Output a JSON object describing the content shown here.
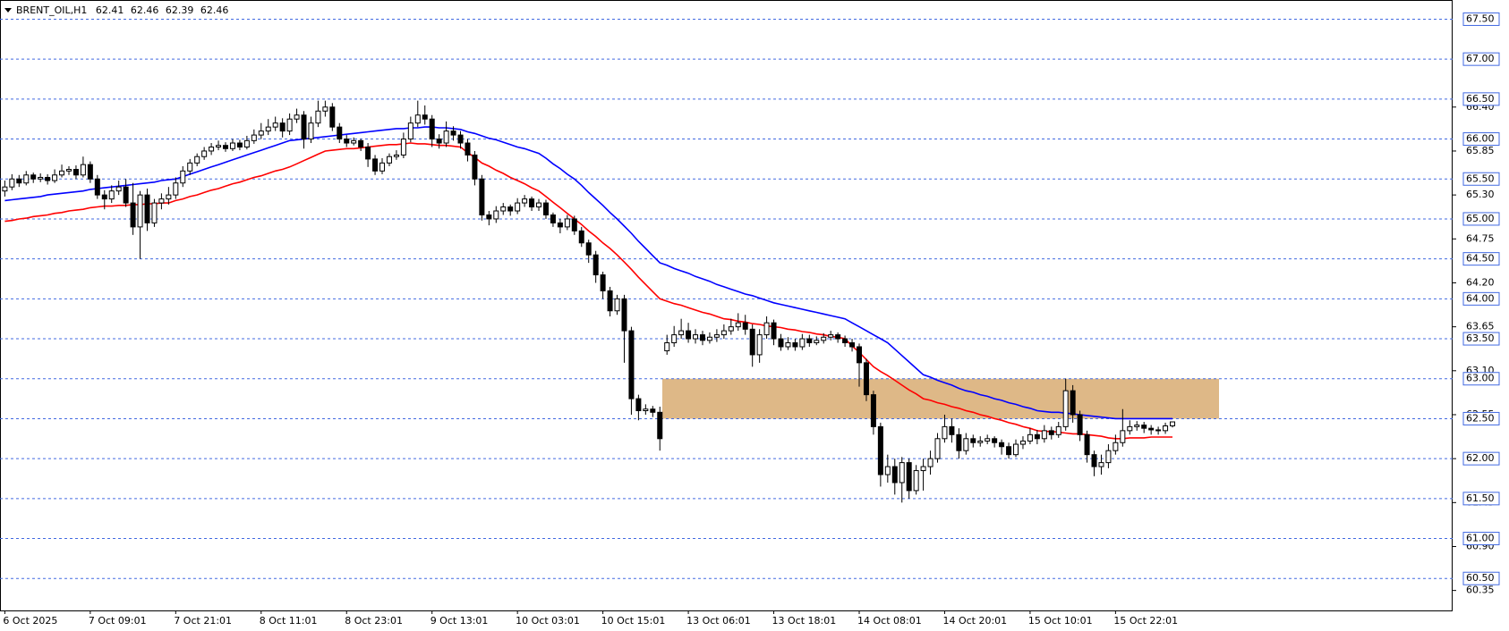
{
  "chart_data": {
    "type": "candlestick",
    "title": "BRENT_OIL,H1",
    "categories": [
      "6 Oct 2025",
      null,
      null,
      null,
      null,
      null,
      null,
      null,
      null,
      null,
      null,
      null,
      "7 Oct 09:01",
      null,
      null,
      null,
      null,
      null,
      null,
      null,
      null,
      null,
      null,
      null,
      "7 Oct 21:01",
      null,
      null,
      null,
      null,
      null,
      null,
      null,
      null,
      null,
      null,
      null,
      "8 Oct 11:01",
      null,
      null,
      null,
      null,
      null,
      null,
      null,
      null,
      null,
      null,
      null,
      "8 Oct 23:01",
      null,
      null,
      null,
      null,
      null,
      null,
      null,
      null,
      null,
      null,
      null,
      "9 Oct 13:01",
      null,
      null,
      null,
      null,
      null,
      null,
      null,
      null,
      null,
      null,
      null,
      "10 Oct 03:01",
      null,
      null,
      null,
      null,
      null,
      null,
      null,
      null,
      null,
      null,
      null,
      "10 Oct 15:01",
      null,
      null,
      null,
      null,
      null,
      null,
      null,
      null,
      null,
      null,
      null,
      "13 Oct 06:01",
      null,
      null,
      null,
      null,
      null,
      null,
      null,
      null,
      null,
      null,
      null,
      "13 Oct 18:01",
      null,
      null,
      null,
      null,
      null,
      null,
      null,
      null,
      null,
      null,
      null,
      "14 Oct 08:01",
      null,
      null,
      null,
      null,
      null,
      null,
      null,
      null,
      null,
      null,
      null,
      "14 Oct 20:01",
      null,
      null,
      null,
      null,
      null,
      null,
      null,
      null,
      null,
      null,
      null,
      "15 Oct 10:01",
      null,
      null,
      null,
      null,
      null,
      null,
      null,
      null,
      null,
      null,
      null,
      "15 Oct 22:01",
      null,
      null,
      null,
      null,
      null,
      null,
      null,
      null
    ],
    "open": [
      65.35,
      65.4,
      65.5,
      65.45,
      65.55,
      65.5,
      65.52,
      65.48,
      65.55,
      65.6,
      65.62,
      65.55,
      65.68,
      65.5,
      65.3,
      65.25,
      65.35,
      65.4,
      65.2,
      64.9,
      65.3,
      64.95,
      65.2,
      65.25,
      65.3,
      65.45,
      65.6,
      65.7,
      65.78,
      65.85,
      65.9,
      65.92,
      65.88,
      65.95,
      65.9,
      65.98,
      66.05,
      66.1,
      66.15,
      66.2,
      66.1,
      66.25,
      66.3,
      66.0,
      66.2,
      66.35,
      66.4,
      66.15,
      66.0,
      65.95,
      65.98,
      65.9,
      65.75,
      65.6,
      65.7,
      65.78,
      65.8,
      66.0,
      66.2,
      66.3,
      66.25,
      66.0,
      65.95,
      66.1,
      66.05,
      65.95,
      65.8,
      65.5,
      65.05,
      65.0,
      65.1,
      65.15,
      65.1,
      65.2,
      65.25,
      65.15,
      65.2,
      65.05,
      64.95,
      64.9,
      65.0,
      64.85,
      64.7,
      64.55,
      64.3,
      64.1,
      63.85,
      64.0,
      63.6,
      62.75,
      62.6,
      62.62,
      62.58,
      63.35,
      63.45,
      63.55,
      63.6,
      63.5,
      63.55,
      63.48,
      63.52,
      63.55,
      63.6,
      63.65,
      63.7,
      63.62,
      63.3,
      63.55,
      63.7,
      63.5,
      63.4,
      63.45,
      63.4,
      63.5,
      63.45,
      63.48,
      63.52,
      63.55,
      63.5,
      63.45,
      63.4,
      63.2,
      62.8,
      62.4,
      61.8,
      61.9,
      61.7,
      61.95,
      61.6,
      61.85,
      61.9,
      62.0,
      62.25,
      62.4,
      62.3,
      62.1,
      62.25,
      62.2,
      62.22,
      62.25,
      62.2,
      62.15,
      62.05,
      62.18,
      62.22,
      62.3,
      62.25,
      62.35,
      62.3,
      62.4,
      62.85,
      62.55,
      62.3,
      62.05,
      61.9,
      61.95,
      62.1,
      62.2,
      62.35,
      62.4,
      62.42,
      62.38,
      62.36,
      62.35,
      62.41
    ],
    "high": [
      65.48,
      65.56,
      65.55,
      65.6,
      65.58,
      65.57,
      65.56,
      65.62,
      65.68,
      65.66,
      65.67,
      65.78,
      65.72,
      65.55,
      65.36,
      65.42,
      65.48,
      65.5,
      65.45,
      65.35,
      65.38,
      65.25,
      65.32,
      65.4,
      65.52,
      65.66,
      65.75,
      65.82,
      65.9,
      65.95,
      65.98,
      65.96,
      66.0,
      65.99,
      66.04,
      66.12,
      66.2,
      66.25,
      66.28,
      66.26,
      66.32,
      66.38,
      66.35,
      66.28,
      66.48,
      66.48,
      66.45,
      66.2,
      66.05,
      66.02,
      66.0,
      65.95,
      65.8,
      65.76,
      65.82,
      65.86,
      66.08,
      66.28,
      66.48,
      66.42,
      66.3,
      66.06,
      66.22,
      66.16,
      66.1,
      66.0,
      65.85,
      65.55,
      65.1,
      65.16,
      65.2,
      65.18,
      65.26,
      65.3,
      65.28,
      65.25,
      65.24,
      65.08,
      65.0,
      65.05,
      65.04,
      64.9,
      64.74,
      64.6,
      64.34,
      64.15,
      64.05,
      64.05,
      63.65,
      62.8,
      62.68,
      62.66,
      62.65,
      63.55,
      63.66,
      63.75,
      63.7,
      63.62,
      63.6,
      63.58,
      63.62,
      63.68,
      63.75,
      63.82,
      63.8,
      63.68,
      63.62,
      63.78,
      63.74,
      63.56,
      63.52,
      63.5,
      63.56,
      63.55,
      63.53,
      63.57,
      63.6,
      63.58,
      63.54,
      63.5,
      63.44,
      63.25,
      62.85,
      62.45,
      62.05,
      62.0,
      62.02,
      62.0,
      61.92,
      62.0,
      62.1,
      62.32,
      62.55,
      62.5,
      62.38,
      62.32,
      62.3,
      62.28,
      62.3,
      62.28,
      62.24,
      62.2,
      62.24,
      62.28,
      62.38,
      62.36,
      62.42,
      62.4,
      62.46,
      63.0,
      62.92,
      62.6,
      62.35,
      62.1,
      62.05,
      62.18,
      62.3,
      62.62,
      62.48,
      62.47,
      62.46,
      62.42,
      62.4,
      62.45,
      62.46
    ],
    "low": [
      65.28,
      65.36,
      65.4,
      65.42,
      65.45,
      65.46,
      65.43,
      65.45,
      65.52,
      65.55,
      65.5,
      65.52,
      65.45,
      65.25,
      65.12,
      65.2,
      65.3,
      65.15,
      64.8,
      64.5,
      64.85,
      64.9,
      65.12,
      65.18,
      65.25,
      65.4,
      65.55,
      65.66,
      65.74,
      65.8,
      65.86,
      65.84,
      65.85,
      65.86,
      65.87,
      65.94,
      66.0,
      66.05,
      66.1,
      66.02,
      66.05,
      66.2,
      65.88,
      65.95,
      66.15,
      66.28,
      66.1,
      65.95,
      65.9,
      65.92,
      65.85,
      65.65,
      65.55,
      65.56,
      65.66,
      65.74,
      65.76,
      65.96,
      66.15,
      66.18,
      65.9,
      65.88,
      65.9,
      65.98,
      65.88,
      65.72,
      65.42,
      64.98,
      64.92,
      64.95,
      65.05,
      65.04,
      65.06,
      65.15,
      65.1,
      65.1,
      65.0,
      64.9,
      64.82,
      64.86,
      64.8,
      64.65,
      64.45,
      64.2,
      64.0,
      63.78,
      63.8,
      63.2,
      62.55,
      62.48,
      62.55,
      62.52,
      62.1,
      63.3,
      63.4,
      63.5,
      63.45,
      63.44,
      63.42,
      63.44,
      63.46,
      63.5,
      63.55,
      63.6,
      63.55,
      63.15,
      63.2,
      63.5,
      63.42,
      63.35,
      63.36,
      63.35,
      63.36,
      63.4,
      63.42,
      63.44,
      63.48,
      63.45,
      63.4,
      63.34,
      62.9,
      62.72,
      62.3,
      61.65,
      61.7,
      61.55,
      61.45,
      61.5,
      61.55,
      61.6,
      61.8,
      61.95,
      62.2,
      62.2,
      62.0,
      62.05,
      62.14,
      62.15,
      62.18,
      62.14,
      62.05,
      62.0,
      62.02,
      62.12,
      62.18,
      62.18,
      62.2,
      62.24,
      62.26,
      62.35,
      62.45,
      62.22,
      61.95,
      61.78,
      61.8,
      61.88,
      62.05,
      62.15,
      62.3,
      62.35,
      62.32,
      62.3,
      62.3,
      62.31,
      62.39
    ],
    "close": [
      65.4,
      65.5,
      65.45,
      65.55,
      65.5,
      65.52,
      65.48,
      65.55,
      65.6,
      65.62,
      65.55,
      65.68,
      65.5,
      65.3,
      65.25,
      65.35,
      65.4,
      65.2,
      64.9,
      65.3,
      64.95,
      65.2,
      65.25,
      65.3,
      65.45,
      65.6,
      65.7,
      65.78,
      65.85,
      65.9,
      65.92,
      65.88,
      65.95,
      65.9,
      65.98,
      66.05,
      66.1,
      66.15,
      66.2,
      66.1,
      66.25,
      66.3,
      66.0,
      66.2,
      66.35,
      66.4,
      66.15,
      66.0,
      65.95,
      65.98,
      65.9,
      65.75,
      65.6,
      65.7,
      65.78,
      65.8,
      66.0,
      66.2,
      66.3,
      66.25,
      66.0,
      65.95,
      66.1,
      66.05,
      65.95,
      65.8,
      65.5,
      65.05,
      65.0,
      65.1,
      65.15,
      65.1,
      65.2,
      65.25,
      65.15,
      65.2,
      65.05,
      64.95,
      64.9,
      65.0,
      64.85,
      64.7,
      64.55,
      64.3,
      64.1,
      63.85,
      64.0,
      63.6,
      62.75,
      62.6,
      62.62,
      62.58,
      62.25,
      63.45,
      63.55,
      63.6,
      63.5,
      63.55,
      63.48,
      63.52,
      63.55,
      63.6,
      63.65,
      63.7,
      63.62,
      63.3,
      63.55,
      63.7,
      63.5,
      63.4,
      63.45,
      63.4,
      63.5,
      63.45,
      63.48,
      63.52,
      63.55,
      63.5,
      63.45,
      63.4,
      63.2,
      62.8,
      62.4,
      61.8,
      61.9,
      61.7,
      61.95,
      61.6,
      61.85,
      61.9,
      62.0,
      62.25,
      62.4,
      62.3,
      62.1,
      62.25,
      62.2,
      62.22,
      62.25,
      62.2,
      62.15,
      62.05,
      62.18,
      62.22,
      62.3,
      62.25,
      62.35,
      62.3,
      62.4,
      62.85,
      62.55,
      62.3,
      62.05,
      61.9,
      61.95,
      62.1,
      62.2,
      62.35,
      62.4,
      62.42,
      62.38,
      62.36,
      62.35,
      62.41,
      62.46
    ],
    "lines": [
      {
        "color": "#0000ff",
        "values": [
          65.23,
          65.24,
          65.25,
          65.26,
          65.27,
          65.28,
          65.3,
          65.31,
          65.32,
          65.33,
          65.34,
          65.35,
          65.37,
          65.38,
          65.39,
          65.4,
          65.41,
          65.42,
          65.43,
          65.44,
          65.45,
          65.46,
          65.48,
          65.49,
          65.5,
          65.53,
          65.56,
          65.59,
          65.62,
          65.65,
          65.68,
          65.71,
          65.74,
          65.77,
          65.8,
          65.83,
          65.86,
          65.89,
          65.92,
          65.95,
          65.98,
          65.99,
          66.0,
          66.01,
          66.02,
          66.03,
          66.04,
          66.05,
          66.06,
          66.07,
          66.08,
          66.09,
          66.1,
          66.11,
          66.12,
          66.13,
          66.13,
          66.14,
          66.14,
          66.15,
          66.15,
          66.14,
          66.14,
          66.13,
          66.12,
          66.09,
          66.07,
          66.04,
          66.01,
          65.99,
          65.96,
          65.93,
          65.9,
          65.88,
          65.85,
          65.82,
          65.76,
          65.69,
          65.63,
          65.56,
          65.5,
          65.42,
          65.33,
          65.25,
          65.17,
          65.08,
          65.0,
          64.91,
          64.82,
          64.72,
          64.63,
          64.54,
          64.45,
          64.42,
          64.38,
          64.35,
          64.32,
          64.28,
          64.25,
          64.22,
          64.18,
          64.15,
          64.12,
          64.09,
          64.06,
          64.04,
          64.01,
          63.98,
          63.95,
          63.93,
          63.91,
          63.89,
          63.87,
          63.85,
          63.83,
          63.81,
          63.79,
          63.77,
          63.75,
          63.7,
          63.65,
          63.6,
          63.55,
          63.5,
          63.45,
          63.37,
          63.29,
          63.21,
          63.13,
          63.05,
          63.02,
          62.98,
          62.95,
          62.92,
          62.88,
          62.85,
          62.83,
          62.8,
          62.78,
          62.75,
          62.73,
          62.7,
          62.68,
          62.65,
          62.63,
          62.6,
          62.59,
          62.58,
          62.58,
          62.57,
          62.56,
          62.55,
          62.54,
          62.53,
          62.52,
          62.51,
          62.5,
          62.5,
          62.5,
          62.5,
          62.5,
          62.5,
          62.5,
          62.5,
          62.5
        ]
      },
      {
        "color": "#ff0000",
        "values": [
          64.97,
          64.98,
          65.0,
          65.01,
          65.03,
          65.04,
          65.05,
          65.07,
          65.08,
          65.1,
          65.11,
          65.12,
          65.14,
          65.15,
          65.16,
          65.16,
          65.17,
          65.17,
          65.18,
          65.18,
          65.19,
          65.19,
          65.2,
          65.2,
          65.23,
          65.25,
          65.28,
          65.3,
          65.33,
          65.36,
          65.38,
          65.41,
          65.44,
          65.46,
          65.49,
          65.52,
          65.54,
          65.57,
          65.6,
          65.62,
          65.65,
          65.69,
          65.73,
          65.77,
          65.81,
          65.85,
          65.86,
          65.87,
          65.88,
          65.88,
          65.89,
          65.9,
          65.91,
          65.92,
          65.93,
          65.93,
          65.94,
          65.95,
          65.94,
          65.94,
          65.93,
          65.92,
          65.92,
          65.91,
          65.9,
          65.83,
          65.77,
          65.7,
          65.66,
          65.61,
          65.57,
          65.52,
          65.48,
          65.44,
          65.39,
          65.35,
          65.28,
          65.21,
          65.14,
          65.07,
          65.0,
          64.93,
          64.85,
          64.78,
          64.7,
          64.63,
          64.55,
          64.46,
          64.37,
          64.27,
          64.18,
          64.09,
          64.0,
          63.97,
          63.94,
          63.92,
          63.89,
          63.86,
          63.83,
          63.81,
          63.78,
          63.75,
          63.74,
          63.72,
          63.71,
          63.69,
          63.68,
          63.66,
          63.65,
          63.64,
          63.62,
          63.61,
          63.59,
          63.58,
          63.56,
          63.55,
          63.53,
          63.52,
          63.5,
          63.41,
          63.33,
          63.24,
          63.15,
          63.09,
          63.04,
          62.98,
          62.92,
          62.86,
          62.81,
          62.75,
          62.73,
          62.7,
          62.68,
          62.65,
          62.63,
          62.6,
          62.58,
          62.55,
          62.53,
          62.5,
          62.48,
          62.45,
          62.43,
          62.4,
          62.38,
          62.35,
          62.34,
          62.34,
          62.33,
          62.32,
          62.31,
          62.31,
          62.3,
          62.29,
          62.28,
          62.26,
          62.25,
          62.25,
          62.26,
          62.26,
          62.26,
          62.27,
          62.27,
          62.27,
          62.27
        ]
      }
    ],
    "zone": {
      "range": [
        62.5,
        63.0
      ],
      "color": "#deb887"
    },
    "levels": [
      {
        "value": 67.5,
        "label": "67.50"
      },
      {
        "value": 67,
        "label": "67.00"
      },
      {
        "value": 66.5,
        "label": "66.50"
      },
      {
        "value": 66,
        "label": "66.00"
      },
      {
        "value": 65.5,
        "label": "65.50"
      },
      {
        "value": 65,
        "label": "65.00"
      },
      {
        "value": 64.5,
        "label": "64.50"
      },
      {
        "value": 64,
        "label": "64.00"
      },
      {
        "value": 63.5,
        "label": "63.50"
      },
      {
        "value": 63,
        "label": "63.00"
      },
      {
        "value": 62.5,
        "label": "62.50"
      },
      {
        "value": 62,
        "label": "62.00"
      },
      {
        "value": 61.5,
        "label": "61.50"
      },
      {
        "value": 61,
        "label": "61.00"
      },
      {
        "value": 60.5,
        "label": "60.50"
      }
    ],
    "level_color": "#4169e1",
    "ylim": [
      60.1,
      67.74
    ],
    "yticks": [
      {
        "value": 66.4,
        "label": "66.40"
      },
      65.85,
      {
        "value": 65.3,
        "label": "65.30"
      },
      64.75,
      {
        "value": 64.2,
        "label": "64.20"
      },
      63.65,
      {
        "value": 63.1,
        "label": "63.10"
      },
      62.55,
      {
        "value": 62,
        "label": "62.00"
      },
      61.45,
      {
        "value": 60.9,
        "label": "60.90"
      },
      60.35
    ]
  }
}
